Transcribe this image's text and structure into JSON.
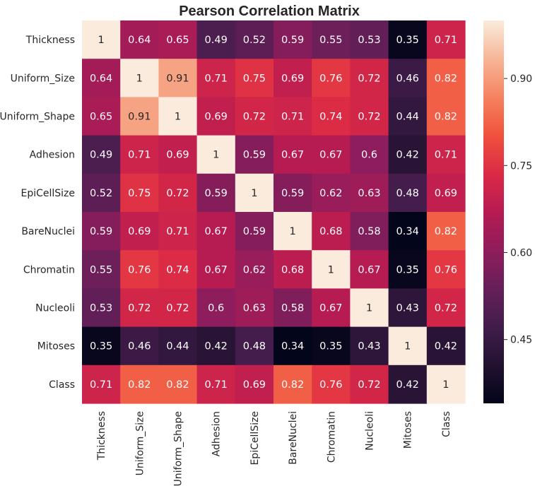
{
  "chart_data": {
    "type": "heatmap",
    "title": "Pearson Correlation Matrix",
    "rows": [
      "Thickness",
      "Uniform_Size",
      "Uniform_Shape",
      "Adhesion",
      "EpiCellSize",
      "BareNuclei",
      "Chromatin",
      "Nucleoli",
      "Mitoses",
      "Class"
    ],
    "columns": [
      "Thickness",
      "Uniform_Size",
      "Uniform_Shape",
      "Adhesion",
      "EpiCellSize",
      "BareNuclei",
      "Chromatin",
      "Nucleoli",
      "Mitoses",
      "Class"
    ],
    "values": [
      [
        1,
        0.64,
        0.65,
        0.49,
        0.52,
        0.59,
        0.55,
        0.53,
        0.35,
        0.71
      ],
      [
        0.64,
        1,
        0.91,
        0.71,
        0.75,
        0.69,
        0.76,
        0.72,
        0.46,
        0.82
      ],
      [
        0.65,
        0.91,
        1,
        0.69,
        0.72,
        0.71,
        0.74,
        0.72,
        0.44,
        0.82
      ],
      [
        0.49,
        0.71,
        0.69,
        1,
        0.59,
        0.67,
        0.67,
        0.6,
        0.42,
        0.71
      ],
      [
        0.52,
        0.75,
        0.72,
        0.59,
        1,
        0.59,
        0.62,
        0.63,
        0.48,
        0.69
      ],
      [
        0.59,
        0.69,
        0.71,
        0.67,
        0.59,
        1,
        0.68,
        0.58,
        0.34,
        0.82
      ],
      [
        0.55,
        0.76,
        0.74,
        0.67,
        0.62,
        0.68,
        1,
        0.67,
        0.35,
        0.76
      ],
      [
        0.53,
        0.72,
        0.72,
        0.6,
        0.63,
        0.58,
        0.67,
        1,
        0.43,
        0.72
      ],
      [
        0.35,
        0.46,
        0.44,
        0.42,
        0.48,
        0.34,
        0.35,
        0.43,
        1,
        0.42
      ],
      [
        0.71,
        0.82,
        0.82,
        0.71,
        0.69,
        0.82,
        0.76,
        0.72,
        0.42,
        1
      ]
    ],
    "colormap": "rocket",
    "colorbar": {
      "ticks": [
        0.45,
        0.6,
        0.75,
        0.9
      ],
      "tick_labels": [
        "0.45",
        "0.60",
        "0.75",
        "0.90"
      ],
      "range": [
        0.34,
        1.0
      ]
    },
    "annotations": true,
    "grid": false
  }
}
